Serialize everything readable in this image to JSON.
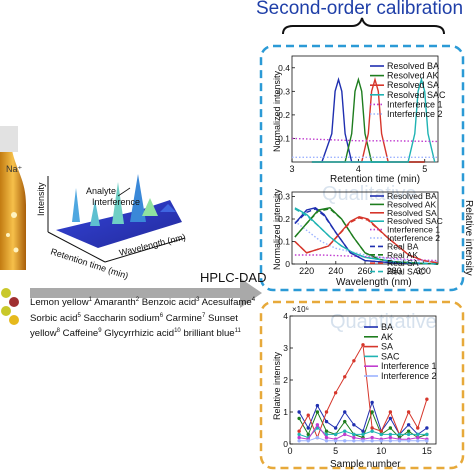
{
  "header": {
    "title": "Second-order calibration"
  },
  "hplc": {
    "label": "HPLC-DAD",
    "axis_intensity": "Intensity",
    "axis_retention": "Retention time (min)",
    "axis_wavelength": "Wavelength (nm)",
    "ann_analyte": "Analyte",
    "ann_interference": "Interference",
    "sodium": "Na⁺"
  },
  "analytes": {
    "parts": [
      {
        "name": "Lemon yellow",
        "n": "1"
      },
      {
        "name": " Amaranth",
        "n": "2"
      },
      {
        "name": " Benzoic acid",
        "n": "3"
      },
      {
        "name": " Acesulfame",
        "n": "4"
      },
      {
        "name": " Sorbic acid",
        "n": "5"
      },
      {
        "name": " Saccharin sodium",
        "n": "6"
      },
      {
        "name": " Carmine",
        "n": "7"
      },
      {
        "name": " Sunset yellow",
        "n": "8"
      },
      {
        "name": " Caffeine",
        "n": "9"
      },
      {
        "name": " Glycyrrhizic acid",
        "n": "10"
      },
      {
        "name": " brilliant blue",
        "n": "11"
      }
    ]
  },
  "colors": {
    "ba": "#1f2fb0",
    "ak": "#1e7d1e",
    "sa": "#d6362b",
    "sac": "#1fb3b3",
    "int1": "#c03ccf",
    "int2": "#9db3ff",
    "blue_box": "#2b9ad6",
    "orange_box": "#e7a93a",
    "arrow": "#9a9a9a"
  },
  "chart_data": [
    {
      "type": "line",
      "xlabel": "Retention time (min)",
      "ylabel": "Normalized intensity",
      "xlim": [
        3.0,
        5.2
      ],
      "ylim": [
        0,
        0.45
      ],
      "xticks": [
        "3",
        "4",
        "5"
      ],
      "yticks": [
        "0.1",
        "0.2",
        "0.3",
        "0.4"
      ],
      "series": [
        {
          "name": "Resolved BA",
          "x": [
            3.3,
            3.45,
            3.6,
            3.65,
            3.7,
            3.75,
            3.8,
            3.9,
            4.0,
            4.5,
            5.0
          ],
          "y": [
            0.0,
            0.0,
            0.12,
            0.3,
            0.35,
            0.3,
            0.12,
            0.0,
            0.0,
            0.0,
            0.0
          ]
        },
        {
          "name": "Resolved AK",
          "x": [
            3.3,
            3.8,
            3.9,
            3.95,
            4.0,
            4.05,
            4.1,
            4.2,
            4.5,
            5.0
          ],
          "y": [
            0.0,
            0.0,
            0.12,
            0.3,
            0.35,
            0.3,
            0.12,
            0.0,
            0.0,
            0.0
          ]
        },
        {
          "name": "Resolved SA",
          "x": [
            3.3,
            4.05,
            4.15,
            4.2,
            4.25,
            4.3,
            4.35,
            4.45,
            5.0
          ],
          "y": [
            0.0,
            0.0,
            0.12,
            0.3,
            0.35,
            0.3,
            0.12,
            0.0,
            0.0
          ]
        },
        {
          "name": "Resolved SAC",
          "x": [
            3.3,
            4.75,
            4.85,
            4.9,
            4.95,
            5.0,
            5.05,
            5.15
          ],
          "y": [
            0.0,
            0.0,
            0.12,
            0.3,
            0.35,
            0.3,
            0.12,
            0.0
          ]
        },
        {
          "name": "Interference 1",
          "x": [
            3.0,
            3.5,
            4.0,
            4.5,
            5.0,
            5.2
          ],
          "y": [
            0.1,
            0.095,
            0.09,
            0.09,
            0.088,
            0.087
          ]
        },
        {
          "name": "Interference 2",
          "x": [
            3.0,
            3.5,
            4.0,
            4.5,
            5.0,
            5.2
          ],
          "y": [
            0.02,
            0.02,
            0.02,
            0.02,
            0.02,
            0.02
          ]
        }
      ]
    },
    {
      "type": "line",
      "xlabel": "Wavelength (nm)",
      "ylabel": "Normalized intensity",
      "right_label": "Relative intensity",
      "watermark": "Qualitative",
      "xlim": [
        210,
        310
      ],
      "ylim": [
        0,
        0.32
      ],
      "xticks": [
        "220",
        "240",
        "260",
        "280",
        "300"
      ],
      "yticks": [
        "0",
        "0.1",
        "0.2",
        "0.3"
      ],
      "series": [
        {
          "name": "Resolved BA",
          "x": [
            212,
            220,
            226,
            232,
            240,
            250,
            260,
            270,
            280,
            300,
            310
          ],
          "y": [
            0.18,
            0.24,
            0.25,
            0.22,
            0.14,
            0.05,
            0.015,
            0.01,
            0.005,
            0.002,
            0.0
          ]
        },
        {
          "name": "Resolved AK",
          "x": [
            212,
            220,
            228,
            236,
            244,
            252,
            260,
            270,
            280,
            300,
            310
          ],
          "y": [
            0.12,
            0.18,
            0.24,
            0.25,
            0.2,
            0.12,
            0.05,
            0.02,
            0.01,
            0.002,
            0.0
          ]
        },
        {
          "name": "Resolved SA",
          "x": [
            212,
            220,
            235,
            250,
            256,
            262,
            275,
            290,
            300,
            310
          ],
          "y": [
            0.1,
            0.05,
            0.08,
            0.19,
            0.21,
            0.2,
            0.12,
            0.04,
            0.015,
            0.005
          ]
        },
        {
          "name": "Resolved SAC",
          "x": [
            212,
            220,
            228,
            236,
            244,
            252,
            260,
            270,
            280,
            300,
            310
          ],
          "y": [
            0.25,
            0.22,
            0.17,
            0.12,
            0.08,
            0.05,
            0.03,
            0.02,
            0.01,
            0.003,
            0.0
          ]
        },
        {
          "name": "Interference 1",
          "x": [
            212,
            230,
            250,
            270,
            290,
            310
          ],
          "y": [
            0.04,
            0.04,
            0.035,
            0.03,
            0.02,
            0.015
          ]
        },
        {
          "name": "Interference 2",
          "x": [
            212,
            220,
            230,
            240,
            260,
            280,
            310
          ],
          "y": [
            0.19,
            0.15,
            0.1,
            0.07,
            0.04,
            0.02,
            0.01
          ]
        },
        {
          "name": "Real BA",
          "x": [
            212,
            220,
            226,
            232,
            240,
            250,
            260,
            270,
            280,
            300,
            310
          ],
          "y": [
            0.18,
            0.23,
            0.245,
            0.215,
            0.14,
            0.05,
            0.015,
            0.01,
            0.005,
            0.002,
            0.0
          ]
        },
        {
          "name": "Real AK",
          "x": [
            212,
            220,
            228,
            236,
            244,
            252,
            260,
            270,
            280,
            300,
            310
          ],
          "y": [
            0.12,
            0.18,
            0.235,
            0.245,
            0.2,
            0.12,
            0.05,
            0.02,
            0.01,
            0.002,
            0.0
          ]
        },
        {
          "name": "Real SA",
          "x": [
            212,
            220,
            235,
            250,
            256,
            262,
            275,
            290,
            300,
            310
          ],
          "y": [
            0.1,
            0.05,
            0.08,
            0.185,
            0.205,
            0.195,
            0.12,
            0.04,
            0.015,
            0.005
          ]
        },
        {
          "name": "Real SAC",
          "x": [
            212,
            220,
            228,
            236,
            244,
            252,
            260,
            270,
            280,
            300,
            310
          ],
          "y": [
            0.245,
            0.215,
            0.17,
            0.12,
            0.08,
            0.05,
            0.03,
            0.02,
            0.01,
            0.003,
            0.0
          ]
        }
      ]
    },
    {
      "type": "line",
      "xlabel": "Sample number",
      "ylabel": "Relative intensity",
      "multiplier": "×10⁶",
      "watermark": "Quantitative",
      "xlim": [
        0,
        16
      ],
      "ylim": [
        0,
        4
      ],
      "xticks": [
        "0",
        "5",
        "10",
        "15"
      ],
      "yticks": [
        "0",
        "1",
        "2",
        "3",
        "4"
      ],
      "series": [
        {
          "name": "BA",
          "x": [
            1,
            2,
            3,
            4,
            5,
            6,
            7,
            8,
            9,
            10,
            11,
            12,
            13,
            14,
            15
          ],
          "y": [
            1.0,
            0.5,
            1.2,
            0.7,
            0.5,
            1.0,
            0.6,
            0.4,
            1.3,
            0.4,
            0.8,
            0.3,
            0.6,
            0.3,
            0.5
          ]
        },
        {
          "name": "AK",
          "x": [
            1,
            2,
            3,
            4,
            5,
            6,
            7,
            8,
            9,
            10,
            11,
            12,
            13,
            14,
            15
          ],
          "y": [
            0.8,
            0.3,
            1.0,
            0.4,
            0.3,
            0.7,
            0.3,
            0.2,
            1.0,
            0.3,
            0.5,
            0.2,
            0.4,
            0.2,
            0.3
          ]
        },
        {
          "name": "SA",
          "x": [
            1,
            2,
            3,
            4,
            5,
            6,
            7,
            8,
            9,
            10,
            11,
            12,
            13,
            14,
            15
          ],
          "y": [
            0.4,
            0.9,
            0.2,
            1.0,
            1.6,
            2.1,
            2.6,
            3.1,
            0.5,
            0.4,
            1.0,
            0.3,
            1.0,
            0.5,
            1.4
          ]
        },
        {
          "name": "SAC",
          "x": [
            1,
            2,
            3,
            4,
            5,
            6,
            7,
            8,
            9,
            10,
            11,
            12,
            13,
            14,
            15
          ],
          "y": [
            0.3,
            0.2,
            0.5,
            0.3,
            0.3,
            0.4,
            0.3,
            0.3,
            0.4,
            0.3,
            0.3,
            0.3,
            0.3,
            0.3,
            0.3
          ]
        },
        {
          "name": "Interference 1",
          "x": [
            1,
            2,
            3,
            4,
            5,
            6,
            7,
            8,
            9,
            10,
            11,
            12,
            13,
            14,
            15
          ],
          "y": [
            0.2,
            0.15,
            0.6,
            0.2,
            0.15,
            0.3,
            0.2,
            0.15,
            0.2,
            0.15,
            0.2,
            0.15,
            0.15,
            0.2,
            0.15
          ]
        },
        {
          "name": "Interference 2",
          "x": [
            1,
            2,
            3,
            4,
            5,
            6,
            7,
            8,
            9,
            10,
            11,
            12,
            13,
            14,
            15
          ],
          "y": [
            0.1,
            0.1,
            0.2,
            0.1,
            0.1,
            0.1,
            0.1,
            0.1,
            0.1,
            0.1,
            0.1,
            0.1,
            0.1,
            0.1,
            0.1
          ]
        }
      ]
    }
  ]
}
